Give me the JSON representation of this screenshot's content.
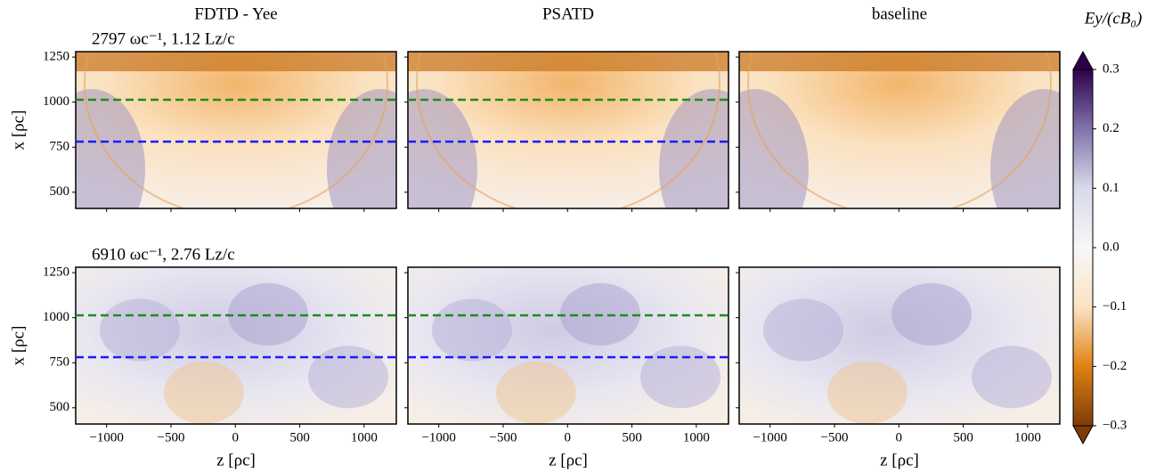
{
  "chart_data": {
    "type": "heatmap",
    "columns": [
      {
        "title": "FDTD - Yee",
        "show_hlines": true
      },
      {
        "title": "PSATD",
        "show_hlines": true
      },
      {
        "title": "baseline",
        "show_hlines": false
      }
    ],
    "row_annotations": [
      "2797 ωc⁻¹,  1.12 Lz/c",
      "6910 ωc⁻¹,  2.76 Lz/c"
    ],
    "xlabel": "z [ρc]",
    "ylabel": "x [ρc]",
    "xlim": [
      -1240,
      1250
    ],
    "xticks": [
      {
        "value": -1000,
        "label": "−1000"
      },
      {
        "value": -500,
        "label": "−500"
      },
      0,
      500,
      1000
    ],
    "ylim": [
      410,
      1280
    ],
    "yticks": [
      500,
      750,
      1000,
      1250
    ],
    "hlines": [
      {
        "value": 1013,
        "color": "#1f8a1f"
      },
      {
        "value": 781,
        "color": "#1a1aff"
      }
    ],
    "colorbar": {
      "label": "Ey/(cB₀)",
      "lim": [
        -0.3,
        0.3
      ],
      "ticks": [
        0.3,
        0.2,
        0.1,
        {
          "value": 0.0,
          "label": "0.0"
        },
        {
          "value": -0.1,
          "label": "−0.1"
        },
        {
          "value": -0.2,
          "label": "−0.2"
        },
        {
          "value": -0.3,
          "label": "−0.3"
        }
      ],
      "colors": [
        "#7f3b08",
        "#e08214",
        "#fbe3c4",
        "#f7f7f7",
        "#d8daeb",
        "#8073ac",
        "#2d004b"
      ]
    }
  }
}
